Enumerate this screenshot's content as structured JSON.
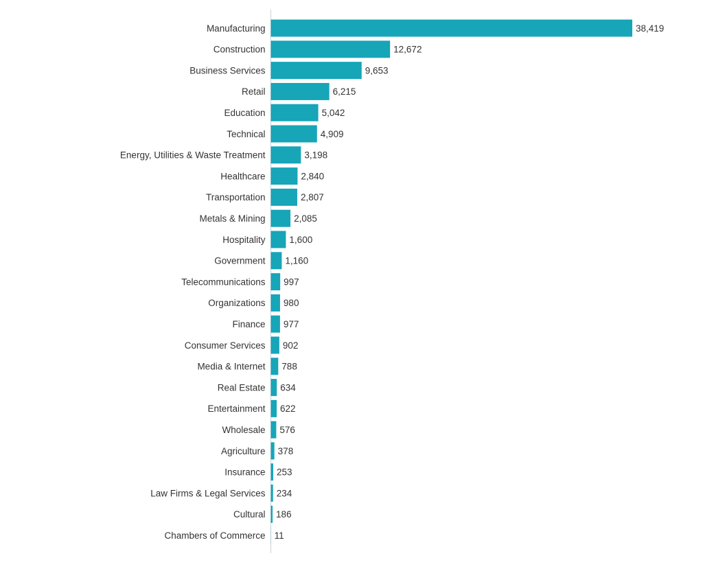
{
  "colors": {
    "bar": "#17a5b8",
    "axis": "#d0d0d0",
    "text": "#333333",
    "background": "#ffffff"
  },
  "chart_data": {
    "type": "bar",
    "orientation": "horizontal",
    "title": "",
    "xlabel": "",
    "ylabel": "",
    "xlim": [
      0,
      38419
    ],
    "grid": false,
    "legend": "none",
    "categories": [
      "Manufacturing",
      "Construction",
      "Business Services",
      "Retail",
      "Education",
      "Technical",
      "Energy, Utilities & Waste Treatment",
      "Healthcare",
      "Transportation",
      "Metals & Mining",
      "Hospitality",
      "Government",
      "Telecommunications",
      "Organizations",
      "Finance",
      "Consumer Services",
      "Media & Internet",
      "Real Estate",
      "Entertainment",
      "Wholesale",
      "Agriculture",
      "Insurance",
      "Law Firms & Legal Services",
      "Cultural",
      "Chambers of Commerce"
    ],
    "values": [
      38419,
      12672,
      9653,
      6215,
      5042,
      4909,
      3198,
      2840,
      2807,
      2085,
      1600,
      1160,
      997,
      980,
      977,
      902,
      788,
      634,
      622,
      576,
      378,
      253,
      234,
      186,
      11
    ],
    "data_labels": [
      "38,419",
      "12,672",
      "9,653",
      "6,215",
      "5,042",
      "4,909",
      "3,198",
      "2,840",
      "2,807",
      "2,085",
      "1,600",
      "1,160",
      "997",
      "980",
      "977",
      "902",
      "788",
      "634",
      "622",
      "576",
      "378",
      "253",
      "234",
      "186",
      "11"
    ]
  }
}
